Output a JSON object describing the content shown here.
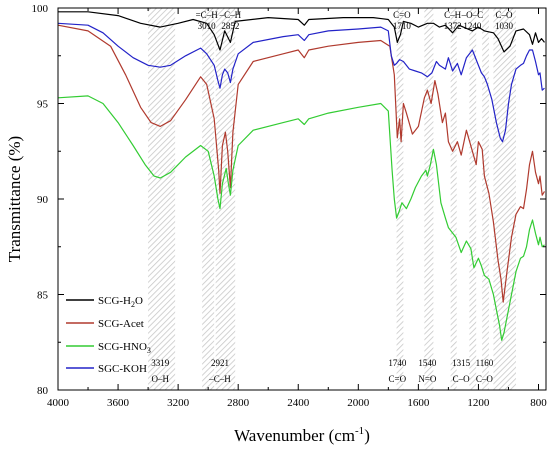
{
  "chart_data": {
    "type": "line",
    "xlabel": "Wavenumber (cm",
    "xlabel_sup": "-1",
    "xlabel_end": ")",
    "ylabel": "Transmittance (%)",
    "xlim": [
      4000,
      750
    ],
    "ylim": [
      80,
      100
    ],
    "x_inverted": true,
    "x_ticks": [
      "4000",
      "3600",
      "3200",
      "2800",
      "2400",
      "2000",
      "1600",
      "1200",
      "800"
    ],
    "y_ticks": [
      "80",
      "85",
      "90",
      "95",
      "100"
    ],
    "legend_position": "left",
    "bands": [
      {
        "from": 3400,
        "to": 3220
      },
      {
        "from": 3040,
        "to": 2960
      },
      {
        "from": 2950,
        "to": 2820
      },
      {
        "from": 1745,
        "to": 1700
      },
      {
        "from": 1560,
        "to": 1500
      },
      {
        "from": 1385,
        "to": 1345
      },
      {
        "from": 1260,
        "to": 1215
      },
      {
        "from": 1175,
        "to": 1130
      },
      {
        "from": 1100,
        "to": 950
      }
    ],
    "top_annotations": [
      {
        "x": 3010,
        "line1": "=C–H",
        "line2": "3010"
      },
      {
        "x": 2852,
        "line1": "–C–H",
        "line2": "2852"
      },
      {
        "x": 1710,
        "line1": "C=O",
        "line2": "1710"
      },
      {
        "x": 1372,
        "line1": "C–H",
        "line2": "1372"
      },
      {
        "x": 1240,
        "line1": "–O–C",
        "line2": "1240"
      },
      {
        "x": 1030,
        "line1": "C–O",
        "line2": "1030"
      }
    ],
    "bottom_annotations": [
      {
        "x": 3319,
        "line1": "3319",
        "line2": "O–H"
      },
      {
        "x": 2921,
        "line1": "2921",
        "line2": "–C–H"
      },
      {
        "x": 1740,
        "line1": "1740",
        "line2": "C=O"
      },
      {
        "x": 1540,
        "line1": "1540",
        "line2": "N=O"
      },
      {
        "x": 1315,
        "line1": "1315",
        "line2": "C–O"
      },
      {
        "x": 1160,
        "line1": "1160",
        "line2": "C–O"
      }
    ],
    "series": [
      {
        "name": "SCG-H2O",
        "label_main": "SCG-H",
        "label_sub": "2",
        "label_tail": "O",
        "color": "#000000",
        "points": [
          [
            4000,
            99.8
          ],
          [
            3800,
            99.8
          ],
          [
            3600,
            99.6
          ],
          [
            3450,
            99.2
          ],
          [
            3319,
            99.0
          ],
          [
            3200,
            99.2
          ],
          [
            3100,
            99.4
          ],
          [
            3010,
            99.2
          ],
          [
            2960,
            98.6
          ],
          [
            2921,
            97.8
          ],
          [
            2890,
            98.8
          ],
          [
            2852,
            98.2
          ],
          [
            2820,
            99.3
          ],
          [
            2600,
            99.5
          ],
          [
            2400,
            99.4
          ],
          [
            2360,
            99.1
          ],
          [
            2330,
            99.4
          ],
          [
            2100,
            99.5
          ],
          [
            1900,
            99.5
          ],
          [
            1800,
            99.4
          ],
          [
            1760,
            99.0
          ],
          [
            1740,
            98.2
          ],
          [
            1720,
            98.6
          ],
          [
            1700,
            99.3
          ],
          [
            1650,
            99.2
          ],
          [
            1600,
            99.0
          ],
          [
            1540,
            99.2
          ],
          [
            1500,
            99.2
          ],
          [
            1460,
            99.0
          ],
          [
            1420,
            99.1
          ],
          [
            1372,
            98.7
          ],
          [
            1330,
            99.1
          ],
          [
            1240,
            98.8
          ],
          [
            1200,
            99.0
          ],
          [
            1160,
            98.8
          ],
          [
            1100,
            98.7
          ],
          [
            1070,
            98.4
          ],
          [
            1030,
            97.7
          ],
          [
            990,
            98.0
          ],
          [
            950,
            98.8
          ],
          [
            900,
            98.9
          ],
          [
            860,
            98.6
          ],
          [
            840,
            98.1
          ],
          [
            820,
            98.7
          ],
          [
            800,
            98.2
          ],
          [
            780,
            98.4
          ],
          [
            760,
            98.2
          ]
        ]
      },
      {
        "name": "SCG-Acet",
        "label_main": "SCG-Acet",
        "label_sub": "",
        "label_tail": "",
        "color": "#b03a2e",
        "points": [
          [
            4000,
            99.1
          ],
          [
            3800,
            98.8
          ],
          [
            3650,
            98.0
          ],
          [
            3550,
            96.5
          ],
          [
            3450,
            94.8
          ],
          [
            3380,
            94.0
          ],
          [
            3319,
            93.8
          ],
          [
            3250,
            94.1
          ],
          [
            3150,
            95.2
          ],
          [
            3050,
            96.4
          ],
          [
            3010,
            96.0
          ],
          [
            2960,
            94.2
          ],
          [
            2930,
            91.5
          ],
          [
            2921,
            90.3
          ],
          [
            2905,
            92.8
          ],
          [
            2885,
            93.5
          ],
          [
            2870,
            92.5
          ],
          [
            2852,
            90.6
          ],
          [
            2835,
            93.5
          ],
          [
            2800,
            96.0
          ],
          [
            2700,
            97.2
          ],
          [
            2500,
            97.6
          ],
          [
            2400,
            97.8
          ],
          [
            2360,
            97.4
          ],
          [
            2330,
            97.8
          ],
          [
            2200,
            98.0
          ],
          [
            2000,
            98.2
          ],
          [
            1850,
            98.3
          ],
          [
            1790,
            98.0
          ],
          [
            1760,
            96.5
          ],
          [
            1740,
            93.2
          ],
          [
            1725,
            94.2
          ],
          [
            1715,
            93.0
          ],
          [
            1700,
            95.0
          ],
          [
            1680,
            94.5
          ],
          [
            1640,
            93.4
          ],
          [
            1600,
            93.8
          ],
          [
            1560,
            95.3
          ],
          [
            1540,
            95.7
          ],
          [
            1515,
            95.0
          ],
          [
            1490,
            96.2
          ],
          [
            1470,
            95.5
          ],
          [
            1440,
            94.0
          ],
          [
            1420,
            94.5
          ],
          [
            1400,
            93.0
          ],
          [
            1372,
            92.5
          ],
          [
            1340,
            93.0
          ],
          [
            1315,
            92.3
          ],
          [
            1280,
            93.6
          ],
          [
            1240,
            92.5
          ],
          [
            1215,
            91.8
          ],
          [
            1200,
            93.0
          ],
          [
            1175,
            92.6
          ],
          [
            1160,
            91.2
          ],
          [
            1130,
            90.3
          ],
          [
            1100,
            88.8
          ],
          [
            1070,
            86.8
          ],
          [
            1050,
            85.8
          ],
          [
            1035,
            84.6
          ],
          [
            1010,
            86.2
          ],
          [
            980,
            88.0
          ],
          [
            950,
            89.2
          ],
          [
            920,
            89.6
          ],
          [
            900,
            89.5
          ],
          [
            880,
            90.5
          ],
          [
            860,
            91.8
          ],
          [
            840,
            92.5
          ],
          [
            820,
            91.4
          ],
          [
            800,
            90.8
          ],
          [
            790,
            91.2
          ],
          [
            775,
            90.2
          ],
          [
            760,
            90.4
          ]
        ]
      },
      {
        "name": "SCG-HNO3",
        "label_main": "SCG-HNO",
        "label_sub": "3",
        "label_tail": "",
        "color": "#33cc33",
        "points": [
          [
            4000,
            95.3
          ],
          [
            3800,
            95.4
          ],
          [
            3700,
            95.0
          ],
          [
            3600,
            94.0
          ],
          [
            3500,
            92.8
          ],
          [
            3420,
            91.8
          ],
          [
            3360,
            91.2
          ],
          [
            3319,
            91.1
          ],
          [
            3250,
            91.4
          ],
          [
            3150,
            92.2
          ],
          [
            3050,
            92.8
          ],
          [
            3000,
            92.5
          ],
          [
            2960,
            91.2
          ],
          [
            2935,
            90.0
          ],
          [
            2921,
            89.5
          ],
          [
            2905,
            90.8
          ],
          [
            2880,
            91.6
          ],
          [
            2865,
            90.8
          ],
          [
            2852,
            90.2
          ],
          [
            2835,
            91.5
          ],
          [
            2800,
            92.8
          ],
          [
            2700,
            93.6
          ],
          [
            2500,
            94.0
          ],
          [
            2400,
            94.2
          ],
          [
            2360,
            93.9
          ],
          [
            2330,
            94.2
          ],
          [
            2200,
            94.5
          ],
          [
            2000,
            94.8
          ],
          [
            1850,
            95.0
          ],
          [
            1800,
            94.6
          ],
          [
            1775,
            91.5
          ],
          [
            1760,
            90.0
          ],
          [
            1745,
            89.0
          ],
          [
            1730,
            89.3
          ],
          [
            1710,
            89.8
          ],
          [
            1680,
            89.5
          ],
          [
            1650,
            90.0
          ],
          [
            1620,
            90.6
          ],
          [
            1580,
            91.2
          ],
          [
            1550,
            91.5
          ],
          [
            1540,
            91.2
          ],
          [
            1520,
            91.8
          ],
          [
            1500,
            92.6
          ],
          [
            1480,
            91.8
          ],
          [
            1450,
            89.8
          ],
          [
            1420,
            89.0
          ],
          [
            1400,
            88.5
          ],
          [
            1380,
            88.3
          ],
          [
            1350,
            88.0
          ],
          [
            1315,
            87.2
          ],
          [
            1280,
            87.8
          ],
          [
            1250,
            87.4
          ],
          [
            1230,
            86.4
          ],
          [
            1200,
            86.9
          ],
          [
            1180,
            86.5
          ],
          [
            1160,
            86.0
          ],
          [
            1130,
            85.8
          ],
          [
            1100,
            85.0
          ],
          [
            1080,
            84.2
          ],
          [
            1060,
            83.4
          ],
          [
            1045,
            82.6
          ],
          [
            1030,
            83.0
          ],
          [
            1010,
            83.8
          ],
          [
            980,
            85.0
          ],
          [
            950,
            86.2
          ],
          [
            920,
            86.9
          ],
          [
            900,
            87.0
          ],
          [
            880,
            87.5
          ],
          [
            860,
            88.4
          ],
          [
            840,
            88.9
          ],
          [
            820,
            88.2
          ],
          [
            800,
            87.6
          ],
          [
            790,
            88.0
          ],
          [
            775,
            87.5
          ],
          [
            760,
            87.6
          ]
        ]
      },
      {
        "name": "SGC-KOH",
        "label_main": "SGC-KOH",
        "label_sub": "",
        "label_tail": "",
        "color": "#2323c8",
        "points": [
          [
            4000,
            99.2
          ],
          [
            3800,
            99.1
          ],
          [
            3700,
            98.7
          ],
          [
            3600,
            98.0
          ],
          [
            3500,
            97.4
          ],
          [
            3400,
            97.0
          ],
          [
            3319,
            96.9
          ],
          [
            3250,
            97.0
          ],
          [
            3150,
            97.5
          ],
          [
            3050,
            97.9
          ],
          [
            3010,
            97.6
          ],
          [
            2960,
            97.0
          ],
          [
            2935,
            96.2
          ],
          [
            2921,
            95.8
          ],
          [
            2905,
            96.5
          ],
          [
            2890,
            96.8
          ],
          [
            2870,
            96.6
          ],
          [
            2852,
            96.1
          ],
          [
            2835,
            96.8
          ],
          [
            2800,
            97.6
          ],
          [
            2700,
            98.2
          ],
          [
            2500,
            98.5
          ],
          [
            2400,
            98.6
          ],
          [
            2360,
            98.3
          ],
          [
            2330,
            98.6
          ],
          [
            2200,
            98.8
          ],
          [
            2000,
            98.9
          ],
          [
            1850,
            99.0
          ],
          [
            1800,
            98.8
          ],
          [
            1780,
            97.5
          ],
          [
            1760,
            97.0
          ],
          [
            1745,
            97.1
          ],
          [
            1725,
            97.3
          ],
          [
            1700,
            97.2
          ],
          [
            1660,
            96.8
          ],
          [
            1620,
            96.7
          ],
          [
            1580,
            96.6
          ],
          [
            1540,
            96.4
          ],
          [
            1510,
            96.6
          ],
          [
            1480,
            97.2
          ],
          [
            1460,
            97.0
          ],
          [
            1420,
            96.8
          ],
          [
            1400,
            97.4
          ],
          [
            1372,
            96.7
          ],
          [
            1340,
            97.1
          ],
          [
            1315,
            96.5
          ],
          [
            1280,
            97.4
          ],
          [
            1240,
            97.8
          ],
          [
            1210,
            97.2
          ],
          [
            1180,
            96.6
          ],
          [
            1160,
            96.4
          ],
          [
            1140,
            96.0
          ],
          [
            1110,
            95.2
          ],
          [
            1080,
            94.0
          ],
          [
            1055,
            93.2
          ],
          [
            1040,
            93.0
          ],
          [
            1020,
            93.6
          ],
          [
            1000,
            95.0
          ],
          [
            980,
            96.0
          ],
          [
            950,
            96.8
          ],
          [
            920,
            97.0
          ],
          [
            900,
            97.1
          ],
          [
            880,
            97.5
          ],
          [
            860,
            97.8
          ],
          [
            840,
            97.8
          ],
          [
            820,
            97.2
          ],
          [
            800,
            96.5
          ],
          [
            790,
            96.6
          ],
          [
            775,
            95.7
          ],
          [
            760,
            95.8
          ]
        ]
      }
    ]
  }
}
